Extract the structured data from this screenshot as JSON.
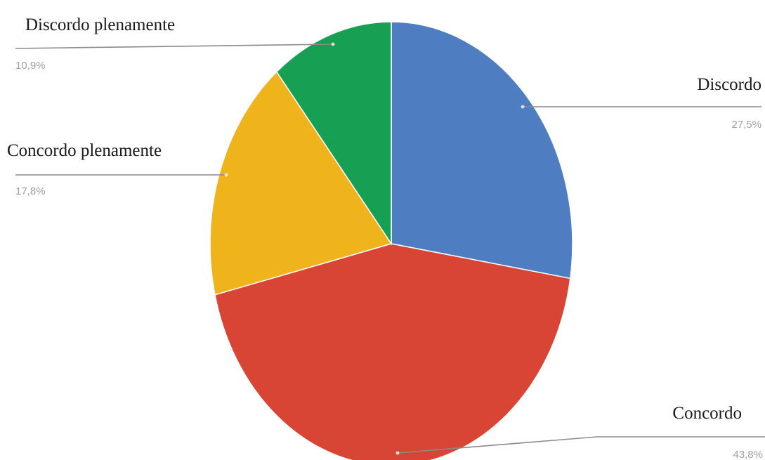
{
  "chart_data": {
    "type": "pie",
    "slices": [
      {
        "label": "Discordo",
        "value": 27.5,
        "value_label": "27,5%",
        "color": "#4f7dc1"
      },
      {
        "label": "Concordo",
        "value": 43.8,
        "value_label": "43,8%",
        "color": "#d94535"
      },
      {
        "label": "Concordo plenamente",
        "value": 17.8,
        "value_label": "17,8%",
        "color": "#efb31b"
      },
      {
        "label": "Discordo plenamente",
        "value": 10.9,
        "value_label": "10,9%",
        "color": "#17a053"
      }
    ],
    "start": "12 o'clock",
    "direction": "clockwise"
  }
}
